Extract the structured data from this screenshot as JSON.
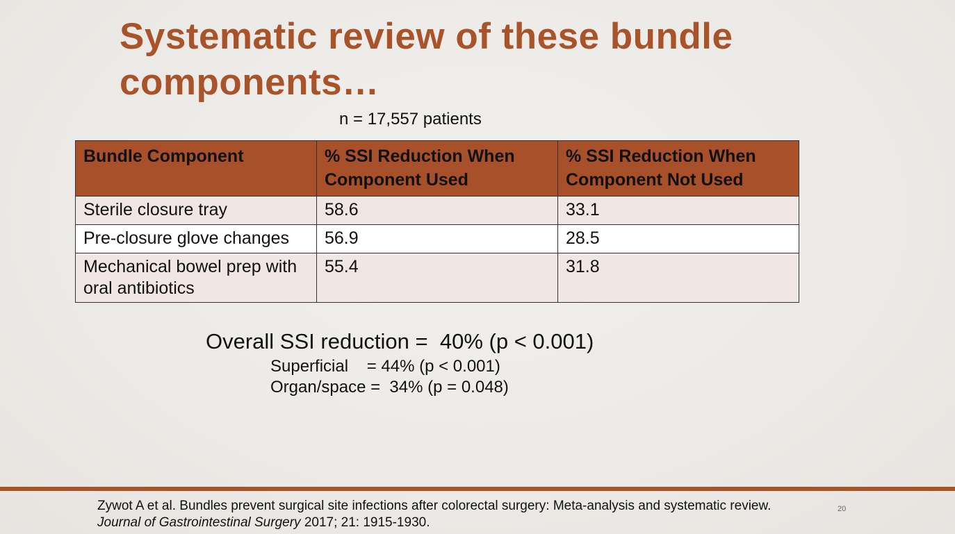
{
  "slide": {
    "title": "Systematic review of these bundle components…",
    "subtitle": "n = 17,557 patients",
    "table": {
      "headers": [
        "Bundle Component",
        "% SSI Reduction When Component Used",
        "% SSI Reduction When Component Not Used"
      ],
      "rows": [
        [
          "Sterile closure tray",
          "58.6",
          "33.1"
        ],
        [
          "Pre-closure glove changes",
          "56.9",
          "28.5"
        ],
        [
          "Mechanical bowel prep with oral antibiotics",
          "55.4",
          "31.8"
        ]
      ]
    },
    "overall": "Overall SSI reduction =  40% (p < 0.001)",
    "superficial": "Superficial    = 44% (p < 0.001)",
    "organ_space": "Organ/space =  34% (p = 0.048)",
    "citation": {
      "text": "Zywot A et al. Bundles prevent surgical site infections after colorectal surgery: Meta-analysis and systematic review.",
      "journal": "Journal of Gastrointestinal Surgery",
      "details": " 2017; 21: 1915-1930."
    },
    "page_number": "20",
    "colors": {
      "accent": "#a9532b",
      "header_bg": "#a85029",
      "row_alt": "#f0e7e5"
    }
  }
}
